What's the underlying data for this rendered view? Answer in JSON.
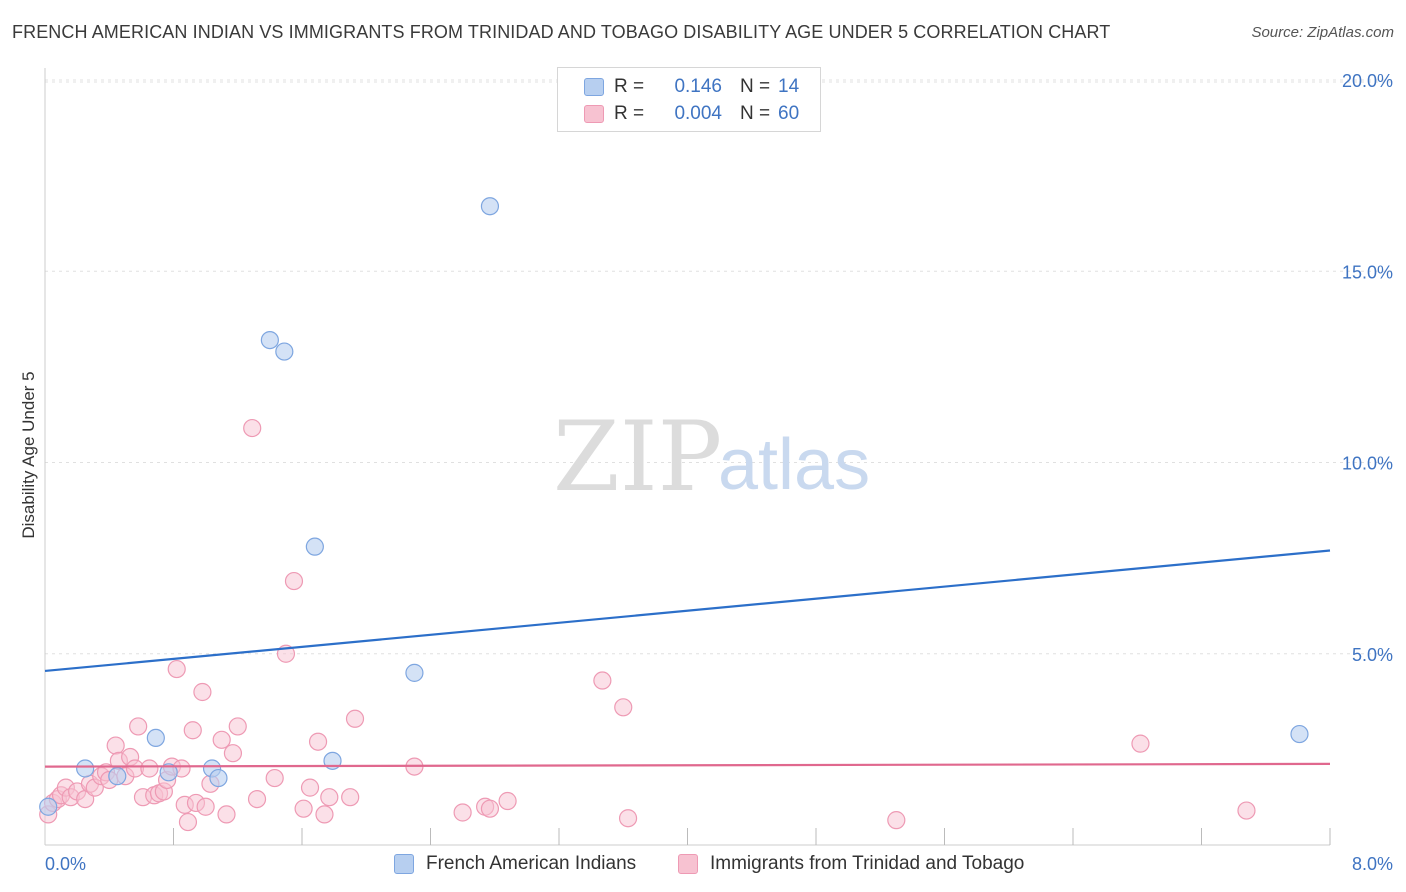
{
  "title": "FRENCH AMERICAN INDIAN VS IMMIGRANTS FROM TRINIDAD AND TOBAGO DISABILITY AGE UNDER 5 CORRELATION CHART",
  "source": "Source: ZipAtlas.com",
  "watermark": {
    "zip": "ZIP",
    "atlas": "atlas"
  },
  "colors": {
    "blue_fill": "#b7cff0",
    "blue_stroke": "#7ea6e0",
    "blue_line": "#2c6fc9",
    "pink_fill": "#f7c2d1",
    "pink_stroke": "#ee9ab4",
    "pink_line": "#e0688e",
    "tick_text": "#3f74c2",
    "grid": "#e0e0e0"
  },
  "legend": {
    "rows": [
      {
        "r_label": "R =",
        "r_value": "0.146",
        "n_label": "N =",
        "n_value": "14"
      },
      {
        "r_label": "R =",
        "r_value": "0.004",
        "n_label": "N =",
        "n_value": "60"
      }
    ]
  },
  "bottom_legend": {
    "series_a": "French American Indians",
    "series_b": "Immigrants from Trinidad and Tobago"
  },
  "chart_data": {
    "type": "scatter",
    "title": "FRENCH AMERICAN INDIAN VS IMMIGRANTS FROM TRINIDAD AND TOBAGO DISABILITY AGE UNDER 5 CORRELATION CHART",
    "xlabel": "",
    "ylabel": "Disability Age Under 5",
    "xlim": [
      0,
      8
    ],
    "ylim": [
      0,
      20
    ],
    "x_tick_labels": [
      "0.0%",
      "8.0%"
    ],
    "y_ticks": [
      5,
      10,
      15,
      20
    ],
    "y_tick_labels": [
      "5.0%",
      "10.0%",
      "15.0%",
      "20.0%"
    ],
    "series": [
      {
        "name": "French American Indians",
        "color": "blue",
        "points": [
          [
            0.02,
            1.0
          ],
          [
            0.25,
            2.0
          ],
          [
            0.45,
            1.8
          ],
          [
            0.69,
            2.8
          ],
          [
            0.77,
            1.9
          ],
          [
            1.04,
            2.0
          ],
          [
            1.08,
            1.75
          ],
          [
            1.4,
            13.2
          ],
          [
            1.49,
            12.9
          ],
          [
            1.68,
            7.8
          ],
          [
            1.79,
            2.2
          ],
          [
            2.3,
            4.5
          ],
          [
            2.77,
            16.7
          ],
          [
            7.81,
            2.9
          ]
        ],
        "trend": {
          "x": [
            0,
            8
          ],
          "y": [
            4.55,
            7.7
          ]
        }
      },
      {
        "name": "Immigrants from Trinidad and Tobago",
        "color": "pink",
        "points": [
          [
            0.02,
            0.8
          ],
          [
            0.05,
            1.1
          ],
          [
            0.08,
            1.2
          ],
          [
            0.1,
            1.3
          ],
          [
            0.13,
            1.5
          ],
          [
            0.16,
            1.25
          ],
          [
            0.2,
            1.4
          ],
          [
            0.25,
            1.2
          ],
          [
            0.28,
            1.6
          ],
          [
            0.31,
            1.5
          ],
          [
            0.35,
            1.8
          ],
          [
            0.38,
            1.9
          ],
          [
            0.4,
            1.7
          ],
          [
            0.44,
            2.6
          ],
          [
            0.46,
            2.2
          ],
          [
            0.5,
            1.8
          ],
          [
            0.53,
            2.3
          ],
          [
            0.56,
            2.0
          ],
          [
            0.58,
            3.1
          ],
          [
            0.61,
            1.25
          ],
          [
            0.65,
            2.0
          ],
          [
            0.68,
            1.3
          ],
          [
            0.71,
            1.35
          ],
          [
            0.74,
            1.4
          ],
          [
            0.76,
            1.7
          ],
          [
            0.79,
            2.05
          ],
          [
            0.82,
            4.6
          ],
          [
            0.85,
            2.0
          ],
          [
            0.87,
            1.05
          ],
          [
            0.89,
            0.6
          ],
          [
            0.92,
            3.0
          ],
          [
            0.94,
            1.1
          ],
          [
            0.98,
            4.0
          ],
          [
            1.0,
            1.0
          ],
          [
            1.03,
            1.6
          ],
          [
            1.1,
            2.75
          ],
          [
            1.13,
            0.8
          ],
          [
            1.17,
            2.4
          ],
          [
            1.2,
            3.1
          ],
          [
            1.29,
            10.9
          ],
          [
            1.32,
            1.2
          ],
          [
            1.43,
            1.75
          ],
          [
            1.5,
            5.0
          ],
          [
            1.55,
            6.9
          ],
          [
            1.61,
            0.95
          ],
          [
            1.65,
            1.5
          ],
          [
            1.7,
            2.7
          ],
          [
            1.74,
            0.8
          ],
          [
            1.77,
            1.25
          ],
          [
            1.9,
            1.25
          ],
          [
            1.93,
            3.3
          ],
          [
            2.3,
            2.05
          ],
          [
            2.6,
            0.85
          ],
          [
            2.74,
            1.0
          ],
          [
            2.77,
            0.95
          ],
          [
            2.88,
            1.15
          ],
          [
            3.47,
            4.3
          ],
          [
            3.6,
            3.6
          ],
          [
            3.63,
            0.7
          ],
          [
            7.48,
            0.9
          ]
        ],
        "extra_points": [
          [
            5.3,
            0.65
          ],
          [
            6.82,
            2.65
          ]
        ],
        "trend": {
          "x": [
            0,
            8
          ],
          "y": [
            2.05,
            2.12
          ]
        }
      }
    ],
    "grid": true,
    "legend_position": "top-center"
  }
}
